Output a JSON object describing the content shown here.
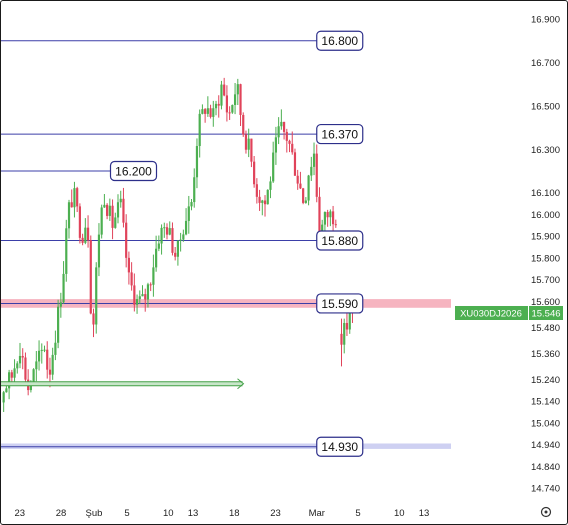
{
  "chart_data": {
    "type": "candlestick",
    "symbol_tag": "XU030DJ2026",
    "last_price_label": "15.546",
    "last_price": 15.546,
    "y_ticks": [
      "16.900",
      "16.700",
      "16.500",
      "16.300",
      "16.100",
      "16.000",
      "15.900",
      "15.800",
      "15.700",
      "15.600",
      "15.480",
      "15.360",
      "15.240",
      "15.140",
      "15.040",
      "14.940",
      "14.840",
      "14.740"
    ],
    "y_tick_values": [
      16.9,
      16.7,
      16.5,
      16.3,
      16.1,
      16.0,
      15.9,
      15.8,
      15.7,
      15.6,
      15.48,
      15.36,
      15.24,
      15.14,
      15.04,
      14.94,
      14.84,
      14.74
    ],
    "x_ticks": [
      "23",
      "28",
      "Şub",
      "5",
      "10",
      "13",
      "18",
      "23",
      "Mar",
      "5",
      "10",
      "13"
    ],
    "x_tick_days": [
      -14,
      -9,
      -5,
      -1,
      4,
      7,
      12,
      17,
      22,
      27,
      32,
      35
    ],
    "ylim": [
      14.65,
      16.98
    ],
    "levels": [
      {
        "value": 16.8,
        "label": "16.800",
        "from_day": -18,
        "to_day": 22
      },
      {
        "value": 16.37,
        "label": "16.370",
        "from_day": -18,
        "to_day": 22
      },
      {
        "value": 16.2,
        "label": "16.200",
        "from_day": -18,
        "to_day": -3
      },
      {
        "value": 15.88,
        "label": "15.880",
        "from_day": -18,
        "to_day": 22
      },
      {
        "value": 15.59,
        "label": "15.590",
        "from_day": -18,
        "to_day": 22,
        "zone": [
          15.57,
          15.61
        ]
      },
      {
        "value": 14.93,
        "label": "14.930",
        "from_day": -18,
        "to_day": 22,
        "zone": [
          14.92,
          14.945
        ]
      }
    ],
    "arrow": {
      "value": 15.22,
      "from_day": -18,
      "to_day": 13
    },
    "candle_start_day": -17.6,
    "candle_step_day": 0.33,
    "candles": [],
    "colors": {
      "up": "#4caf50",
      "down": "#e0435a",
      "level_line": "#3b3fa8",
      "level_box": "#2d2f8a",
      "zone_red": "#f4a7b5",
      "zone_blue": "#c5c8f0",
      "arrow_green": "#43a047",
      "tag_bg": "#4caf50",
      "axis_text": "#222222"
    }
  }
}
